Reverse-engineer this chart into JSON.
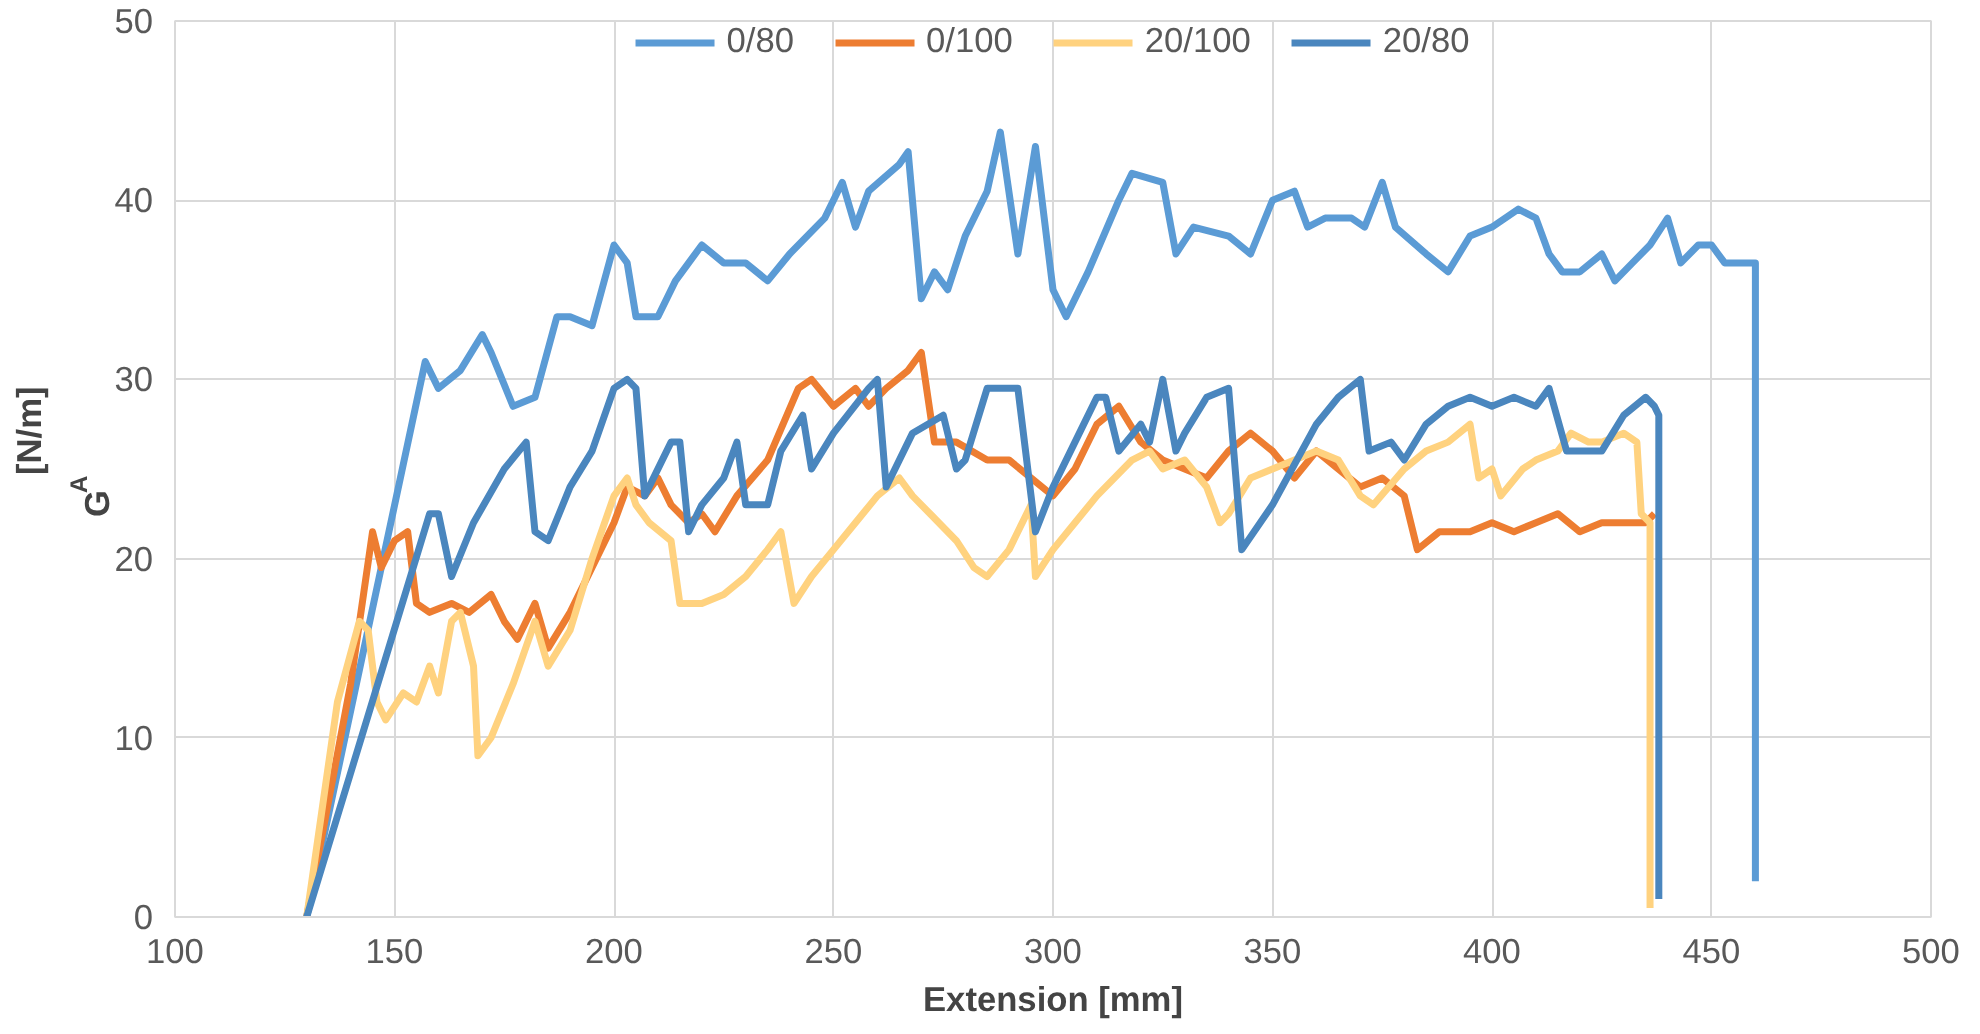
{
  "chart_data": {
    "type": "line",
    "xlabel": "Extension [mm]",
    "ylabel": "G$_{A}$ [N/m]",
    "xlim": [
      100,
      500
    ],
    "ylim": [
      0,
      50
    ],
    "xticks": [
      100,
      150,
      200,
      250,
      300,
      350,
      400,
      450,
      500
    ],
    "yticks": [
      0,
      10,
      20,
      30,
      40,
      50
    ],
    "grid": true,
    "legend": "top",
    "marker": "none",
    "line_style": "solid",
    "series": [
      {
        "name": "0/80",
        "color": "#5b9bd5",
        "x": [
          130,
          157,
          160,
          165,
          170,
          172,
          177,
          182,
          187,
          190,
          195,
          200,
          203,
          205,
          210,
          214,
          220,
          225,
          230,
          235,
          240,
          248,
          252,
          255,
          258,
          265,
          267,
          270,
          273,
          276,
          280,
          285,
          288,
          292,
          296,
          300,
          303,
          308,
          315,
          318,
          325,
          328,
          332,
          340,
          345,
          350,
          355,
          358,
          362,
          368,
          371,
          375,
          378,
          385,
          390,
          395,
          400,
          403,
          406,
          410,
          413,
          416,
          420,
          425,
          428,
          432,
          436,
          440,
          443,
          447,
          450,
          453,
          457,
          460,
          460
        ],
        "values": [
          0,
          31,
          29.5,
          30.5,
          32.5,
          31.5,
          28.5,
          29,
          33.5,
          33.5,
          33,
          37.5,
          36.5,
          33.5,
          33.5,
          35.5,
          37.5,
          36.5,
          36.5,
          35.5,
          37,
          39,
          41,
          38.5,
          40.5,
          42,
          42.7,
          34.5,
          36,
          35,
          38,
          40.5,
          43.8,
          37,
          43,
          35,
          33.5,
          36,
          40,
          41.5,
          41,
          37,
          38.5,
          38,
          37,
          40,
          40.5,
          38.5,
          39,
          39,
          38.5,
          41,
          38.5,
          37,
          36,
          38,
          38.5,
          39,
          39.5,
          39,
          37,
          36,
          36,
          37,
          35.5,
          36.5,
          37.5,
          39,
          36.5,
          37.5,
          37.5,
          36.5,
          36.5,
          36.5,
          2
        ]
      },
      {
        "name": "0/100",
        "color": "#ed7d31",
        "x": [
          130,
          140,
          145,
          147,
          150,
          153,
          155,
          158,
          163,
          167,
          172,
          175,
          178,
          182,
          185,
          190,
          195,
          200,
          203,
          207,
          210,
          213,
          217,
          220,
          223,
          228,
          235,
          242,
          245,
          250,
          255,
          258,
          262,
          267,
          270,
          273,
          278,
          285,
          290,
          295,
          300,
          305,
          310,
          315,
          320,
          325,
          330,
          335,
          340,
          345,
          350,
          355,
          360,
          365,
          370,
          375,
          380,
          383,
          388,
          395,
          400,
          405,
          410,
          415,
          420,
          425,
          430,
          435,
          437
        ],
        "values": [
          0,
          13,
          21.5,
          19.5,
          21,
          21.5,
          17.5,
          17,
          17.5,
          17,
          18,
          16.5,
          15.5,
          17.5,
          15,
          17,
          19.5,
          22,
          24,
          23.5,
          24.5,
          23,
          22,
          22.5,
          21.5,
          23.5,
          25.5,
          29.5,
          30,
          28.5,
          29.5,
          28.5,
          29.5,
          30.5,
          31.5,
          26.5,
          26.5,
          25.5,
          25.5,
          24.5,
          23.5,
          25,
          27.5,
          28.5,
          26.5,
          25.5,
          25,
          24.5,
          26,
          27,
          26,
          24.5,
          26,
          25,
          24,
          24.5,
          23.5,
          20.5,
          21.5,
          21.5,
          22,
          21.5,
          22,
          22.5,
          21.5,
          22,
          22,
          22,
          22.5
        ]
      },
      {
        "name": "20/100",
        "color": "#ffd27f",
        "x": [
          130,
          137,
          142,
          144,
          146,
          148,
          152,
          155,
          158,
          160,
          163,
          165,
          168,
          169,
          172,
          177,
          182,
          185,
          190,
          195,
          200,
          203,
          205,
          208,
          213,
          215,
          220,
          225,
          230,
          235,
          238,
          241,
          245,
          250,
          255,
          260,
          265,
          268,
          272,
          278,
          282,
          285,
          290,
          295,
          296,
          300,
          305,
          310,
          318,
          322,
          325,
          330,
          335,
          338,
          340,
          345,
          350,
          355,
          360,
          365,
          370,
          373,
          380,
          385,
          390,
          395,
          397,
          400,
          402,
          407,
          410,
          415,
          418,
          422,
          425,
          430,
          433,
          434,
          436,
          436
        ],
        "values": [
          0,
          12,
          16.5,
          16,
          12,
          11,
          12.5,
          12,
          14,
          12.5,
          16.5,
          17,
          14,
          9,
          10,
          13,
          16.5,
          14,
          16,
          20,
          23.5,
          24.5,
          23,
          22,
          21,
          17.5,
          17.5,
          18,
          19,
          20.5,
          21.5,
          17.5,
          19,
          20.5,
          22,
          23.5,
          24.5,
          23.5,
          22.5,
          21,
          19.5,
          19,
          20.5,
          23,
          19,
          20.5,
          22,
          23.5,
          25.5,
          26,
          25,
          25.5,
          24,
          22,
          22.5,
          24.5,
          25,
          25.5,
          26,
          25.5,
          23.5,
          23,
          25,
          26,
          26.5,
          27.5,
          24.5,
          25,
          23.5,
          25,
          25.5,
          26,
          27,
          26.5,
          26.5,
          27,
          26.5,
          22.5,
          22,
          0.5
        ]
      },
      {
        "name": "20/80",
        "color": "#4a86be",
        "x": [
          130,
          158,
          160,
          163,
          168,
          175,
          180,
          182,
          185,
          190,
          195,
          200,
          203,
          205,
          207,
          213,
          215,
          217,
          220,
          225,
          228,
          230,
          235,
          238,
          243,
          245,
          250,
          258,
          260,
          262,
          268,
          275,
          278,
          280,
          285,
          288,
          292,
          296,
          300,
          305,
          310,
          312,
          315,
          320,
          322,
          325,
          328,
          330,
          335,
          340,
          343,
          350,
          360,
          365,
          370,
          372,
          377,
          380,
          385,
          390,
          395,
          400,
          405,
          410,
          413,
          417,
          420,
          425,
          430,
          435,
          437,
          438,
          438
        ],
        "values": [
          0,
          22.5,
          22.5,
          19,
          22,
          25,
          26.5,
          21.5,
          21,
          24,
          26,
          29.5,
          30,
          29.5,
          23.5,
          26.5,
          26.5,
          21.5,
          23,
          24.5,
          26.5,
          23,
          23,
          26,
          28,
          25,
          27,
          29.5,
          30,
          24,
          27,
          28,
          25,
          25.5,
          29.5,
          29.5,
          29.5,
          21.5,
          24,
          26.5,
          29,
          29,
          26,
          27.5,
          26.5,
          30,
          26,
          27,
          29,
          29.5,
          20.5,
          23,
          27.5,
          29,
          30,
          26,
          26.5,
          25.5,
          27.5,
          28.5,
          29,
          28.5,
          29,
          28.5,
          29.5,
          26,
          26,
          26,
          28,
          29,
          28.5,
          28,
          1
        ]
      }
    ]
  }
}
